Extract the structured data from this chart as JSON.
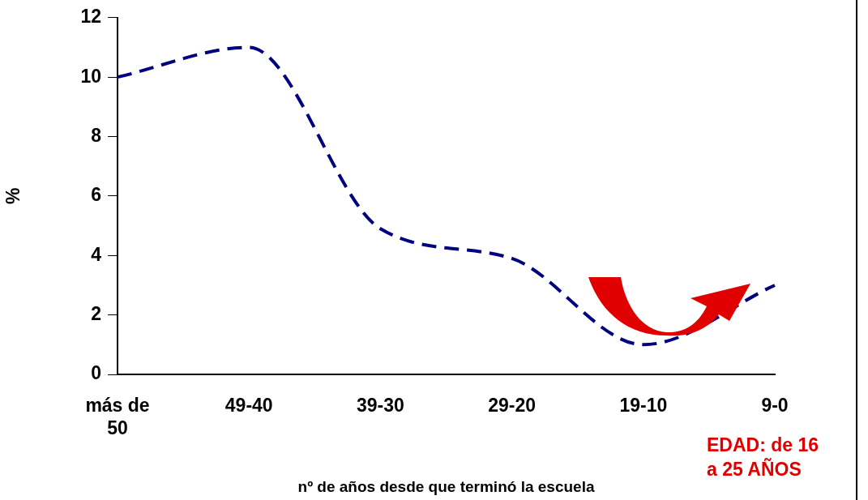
{
  "chart_data": {
    "type": "line",
    "xlabel": "nº de años desde que terminó la escuela",
    "ylabel": "%",
    "categories": [
      "más de 50",
      "49-40",
      "39-30",
      "29-20",
      "19-10",
      "9-0"
    ],
    "series": [
      {
        "color": "#000080",
        "values": [
          10,
          11,
          4.9,
          3.9,
          1.0,
          3.0
        ]
      }
    ],
    "ylim": [
      0,
      12
    ],
    "yticks": [
      0,
      2,
      4,
      6,
      8,
      10,
      12
    ],
    "grid": false,
    "legend": false,
    "marker": "none",
    "line_style": "dashed",
    "annotations": [
      "EDAD: de 16 a 25 AÑOS"
    ]
  }
}
